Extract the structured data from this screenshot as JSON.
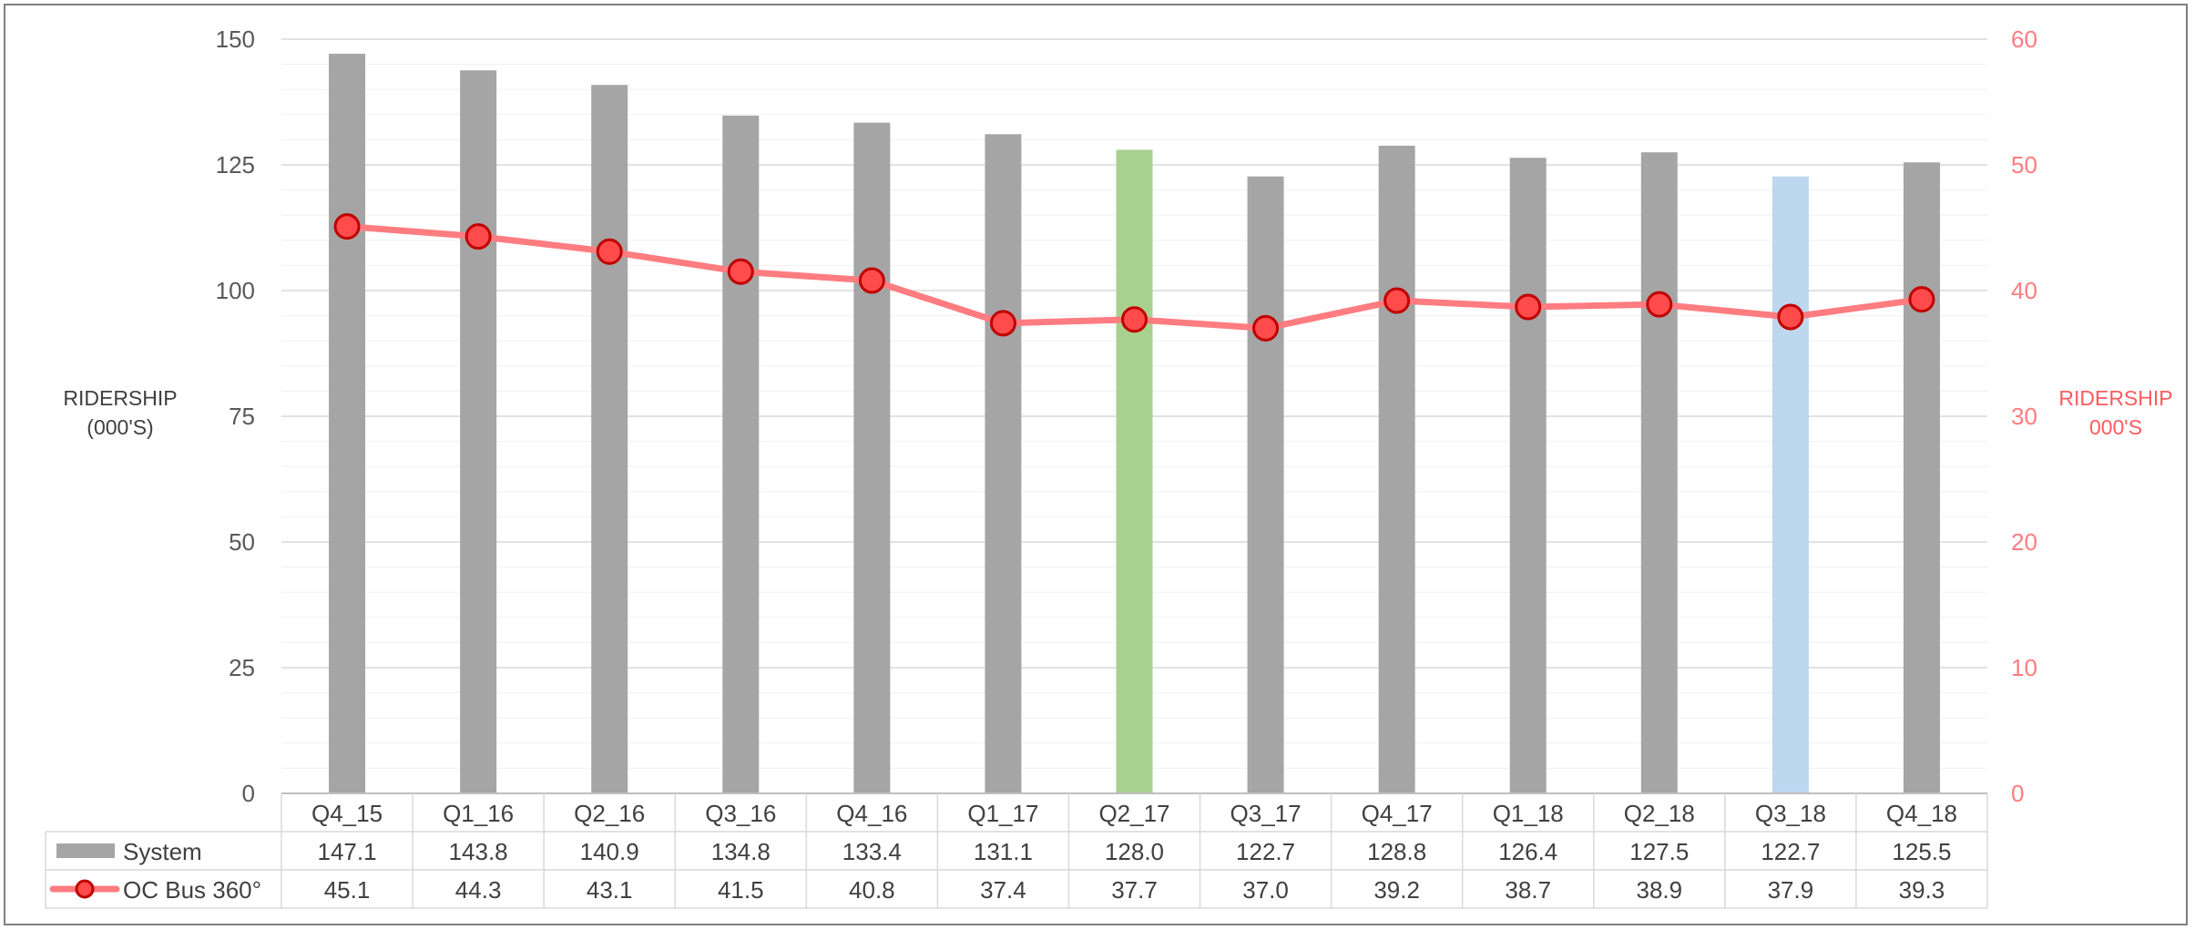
{
  "chart_data": {
    "type": "bar",
    "categories": [
      "Q4_15",
      "Q1_16",
      "Q2_16",
      "Q3_16",
      "Q4_16",
      "Q1_17",
      "Q2_17",
      "Q3_17",
      "Q4_17",
      "Q1_18",
      "Q2_18",
      "Q3_18",
      "Q4_18"
    ],
    "series": [
      {
        "name": "System",
        "type": "bar",
        "axis": "left",
        "values": [
          147.1,
          143.8,
          140.9,
          134.8,
          133.4,
          131.1,
          128.0,
          122.7,
          128.8,
          126.4,
          127.5,
          122.7,
          125.5
        ],
        "labels": [
          "147.1",
          "143.8",
          "140.9",
          "134.8",
          "133.4",
          "131.1",
          "128.0",
          "122.7",
          "128.8",
          "126.4",
          "127.5",
          "122.7",
          "125.5"
        ],
        "color": "#a5a5a5",
        "highlights": {
          "Q2_17": "#a9d18e",
          "Q3_18": "#bdd7ee"
        }
      },
      {
        "name": "OC Bus 360°",
        "type": "line",
        "axis": "right",
        "values": [
          45.1,
          44.3,
          43.1,
          41.5,
          40.8,
          37.4,
          37.7,
          37.0,
          39.2,
          38.7,
          38.9,
          37.9,
          39.3
        ],
        "labels": [
          "45.1",
          "44.3",
          "43.1",
          "41.5",
          "40.8",
          "37.4",
          "37.7",
          "37.0",
          "39.2",
          "38.7",
          "38.9",
          "37.9",
          "39.3"
        ],
        "color": "#ff7c80",
        "marker_fill": "#ff4b4b",
        "marker_stroke": "#c00000"
      }
    ],
    "ylabel_left": "RIDERSHIP\n(000'S)",
    "ylabel_right": "RIDERSHIP\n000'S",
    "ylim_left": [
      0,
      150
    ],
    "ylim_right": [
      0,
      60
    ],
    "yticks_left": [
      "0",
      "25",
      "50",
      "75",
      "100",
      "125",
      "150"
    ],
    "yticks_right": [
      "0",
      "10",
      "20",
      "30",
      "40",
      "50",
      "60"
    ],
    "grid": true,
    "legend": "data-table"
  }
}
